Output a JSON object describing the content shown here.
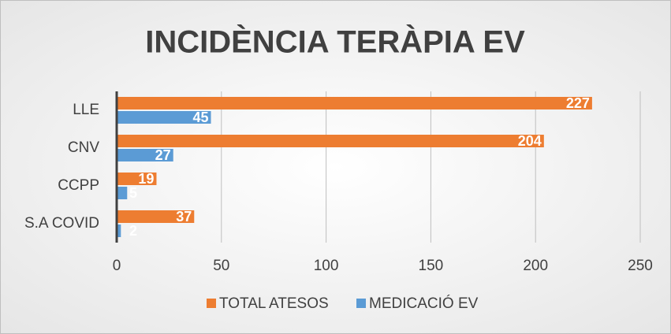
{
  "chart_data": {
    "type": "bar",
    "orientation": "horizontal",
    "title": "INCIDÈNCIA TERÀPIA EV",
    "categories": [
      "LLE",
      "CNV",
      "CCPP",
      "S.A COVID"
    ],
    "series": [
      {
        "name": "TOTAL ATESOS",
        "color": "#ed7d31",
        "values": [
          227,
          204,
          19,
          37
        ]
      },
      {
        "name": "MEDICACIÓ EV",
        "color": "#5b9bd5",
        "values": [
          45,
          27,
          5,
          2
        ]
      }
    ],
    "xlim": [
      0,
      250
    ],
    "xticks": [
      0,
      50,
      100,
      150,
      200,
      250
    ],
    "grid": true,
    "legend": "bottom"
  }
}
